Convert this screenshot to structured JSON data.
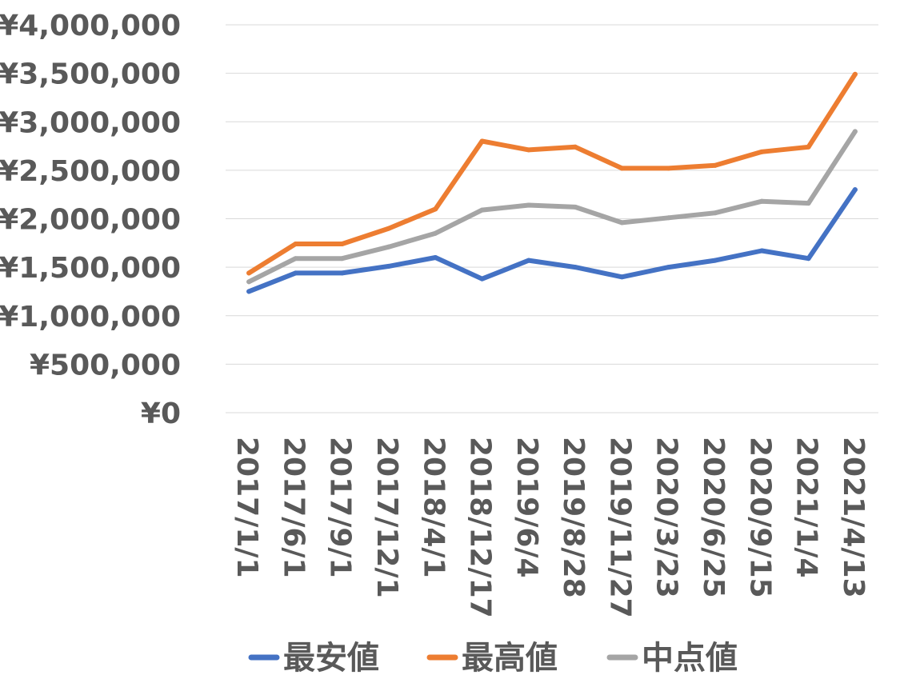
{
  "chart_data": {
    "type": "line",
    "categories": [
      "2017/1/1",
      "2017/6/1",
      "2017/9/1",
      "2017/12/1",
      "2018/4/1",
      "2018/12/17",
      "2019/6/4",
      "2019/8/28",
      "2019/11/27",
      "2020/3/23",
      "2020/6/25",
      "2020/9/15",
      "2021/1/4",
      "2021/4/13"
    ],
    "series": [
      {
        "name": "最安値",
        "color": "#4472c4",
        "values": [
          1250000,
          1440000,
          1440000,
          1510000,
          1600000,
          1380000,
          1570000,
          1500000,
          1400000,
          1500000,
          1570000,
          1670000,
          1590000,
          2300000
        ]
      },
      {
        "name": "最高値",
        "color": "#ed7d31",
        "values": [
          1440000,
          1740000,
          1740000,
          1900000,
          2100000,
          2800000,
          2710000,
          2740000,
          2520000,
          2520000,
          2550000,
          2690000,
          2740000,
          3490000
        ]
      },
      {
        "name": "中点値",
        "color": "#a5a5a5",
        "values": [
          1350000,
          1590000,
          1590000,
          1710000,
          1850000,
          2090000,
          2140000,
          2120000,
          1960000,
          2010000,
          2060000,
          2180000,
          2160000,
          2900000
        ]
      }
    ],
    "y_ticks": [
      "¥0",
      "¥500,000",
      "¥1,000,000",
      "¥1,500,000",
      "¥2,000,000",
      "¥2,500,000",
      "¥3,000,000",
      "¥3,500,000",
      "¥4,000,000"
    ],
    "ylim": [
      0,
      4000000
    ],
    "y_tick_step": 500000,
    "grid": true,
    "legend_position": "bottom",
    "title": "",
    "xlabel": "",
    "ylabel": ""
  }
}
